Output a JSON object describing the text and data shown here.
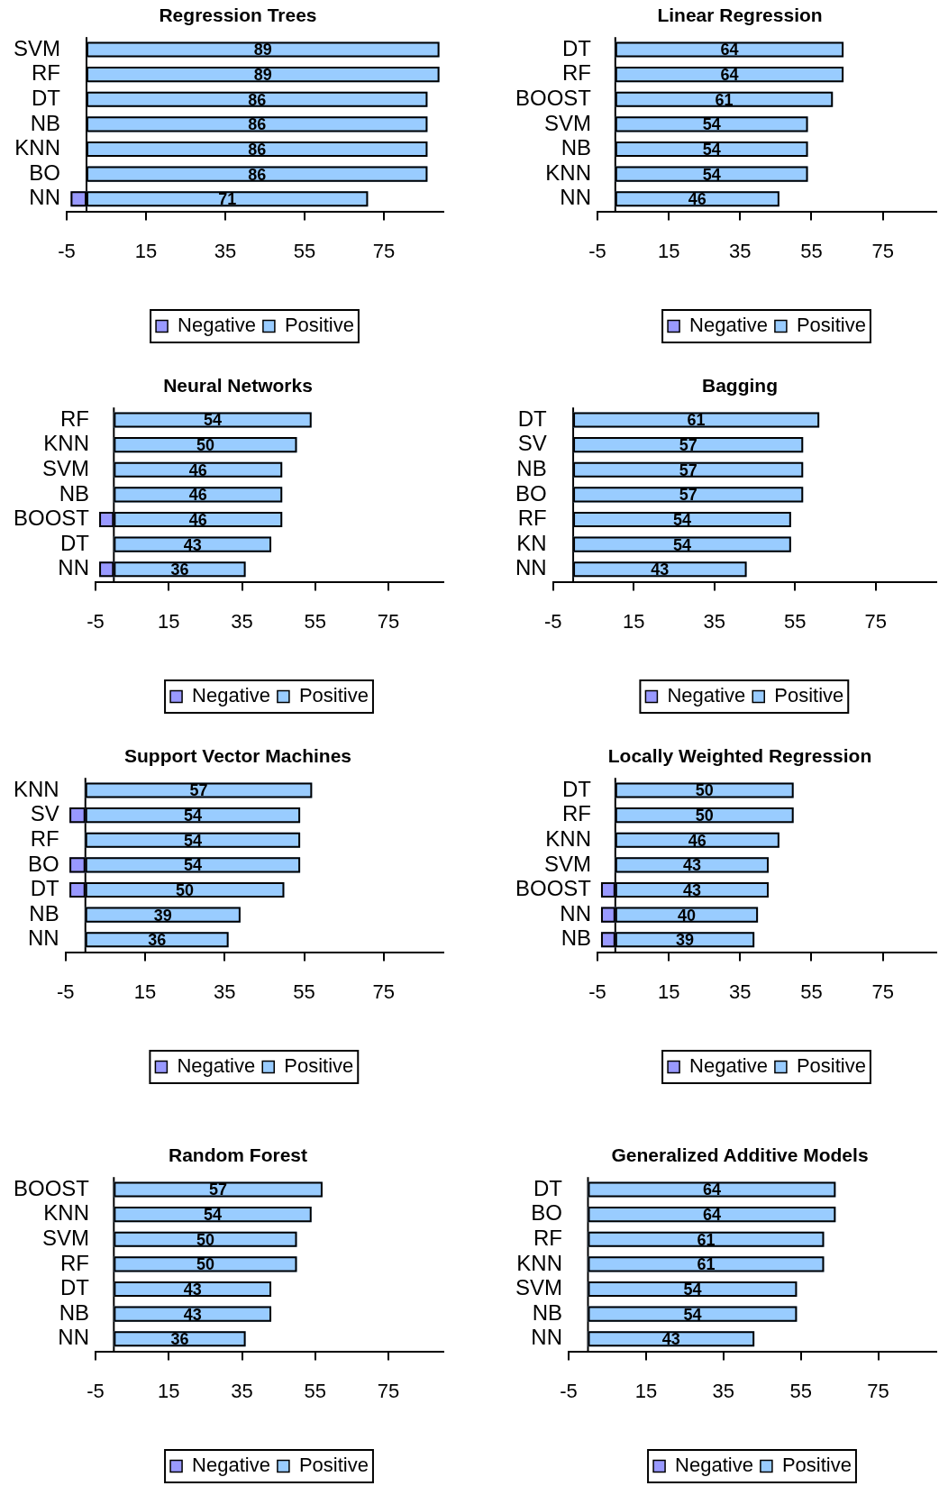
{
  "chart_data": [
    {
      "type": "bar",
      "title": "Regression Trees",
      "orientation": "horizontal",
      "stacked": true,
      "categories": [
        "SVM",
        "RF",
        "DT",
        "NB",
        "KNN",
        "BO",
        "NN"
      ],
      "series": [
        {
          "name": "Negative",
          "color": "#9999ff",
          "values": [
            null,
            null,
            null,
            null,
            null,
            null,
            -4
          ]
        },
        {
          "name": "Positive",
          "color": "#99ccff",
          "values": [
            89,
            89,
            86,
            86,
            86,
            86,
            71
          ],
          "value_labels": [
            "89",
            "89",
            "86",
            "86",
            "86",
            "86",
            "71"
          ]
        }
      ],
      "xlim": [
        -5,
        90
      ],
      "xticks": [
        -5,
        15,
        35,
        55,
        75
      ],
      "legend": "bottom"
    },
    {
      "type": "bar",
      "title": "Linear Regression",
      "orientation": "horizontal",
      "stacked": true,
      "categories": [
        "DT",
        "RF",
        "BOOST",
        "SVM",
        "NB",
        "KNN",
        "NN"
      ],
      "series": [
        {
          "name": "Negative",
          "color": "#9999ff",
          "values": [
            null,
            null,
            null,
            null,
            null,
            null,
            null
          ]
        },
        {
          "name": "Positive",
          "color": "#99ccff",
          "values": [
            64,
            64,
            61,
            54,
            54,
            54,
            46
          ],
          "value_labels": [
            "64",
            "64",
            "61",
            "54",
            "54",
            "54",
            "46"
          ]
        }
      ],
      "xlim": [
        -5,
        90
      ],
      "xticks": [
        -5,
        15,
        35,
        55,
        75
      ],
      "legend": "bottom"
    },
    {
      "type": "bar",
      "title": "Neural Networks",
      "orientation": "horizontal",
      "stacked": true,
      "categories": [
        "RF",
        "KNN",
        "SVM",
        "NB",
        "BOOST",
        "DT",
        "NN"
      ],
      "series": [
        {
          "name": "Negative",
          "color": "#9999ff",
          "values": [
            null,
            null,
            null,
            null,
            -4,
            null,
            -4
          ]
        },
        {
          "name": "Positive",
          "color": "#99ccff",
          "values": [
            54,
            50,
            46,
            46,
            46,
            43,
            36
          ],
          "value_labels": [
            "54",
            "50",
            "46",
            "46",
            "46",
            "43",
            "36"
          ]
        }
      ],
      "xlim": [
        -5,
        90
      ],
      "xticks": [
        -5,
        15,
        35,
        55,
        75
      ],
      "legend": "bottom"
    },
    {
      "type": "bar",
      "title": "Bagging",
      "orientation": "horizontal",
      "stacked": true,
      "categories": [
        "DT",
        "SV",
        "NB",
        "BO",
        "RF",
        "KN",
        "NN"
      ],
      "series": [
        {
          "name": "Negative",
          "color": "#9999ff",
          "values": [
            null,
            null,
            null,
            null,
            null,
            null,
            null
          ]
        },
        {
          "name": "Positive",
          "color": "#99ccff",
          "values": [
            61,
            57,
            57,
            57,
            54,
            54,
            43
          ],
          "value_labels": [
            "61",
            "57",
            "57",
            "57",
            "54",
            "54",
            "43"
          ]
        }
      ],
      "xlim": [
        -5,
        90
      ],
      "xticks": [
        -5,
        15,
        35,
        55,
        75
      ],
      "legend": "bottom"
    },
    {
      "type": "bar",
      "title": "Support Vector Machines",
      "orientation": "horizontal",
      "stacked": true,
      "categories": [
        "KNN",
        "SV",
        "RF",
        "BO",
        "DT",
        "NB",
        "NN"
      ],
      "series": [
        {
          "name": "Negative",
          "color": "#9999ff",
          "values": [
            null,
            -4,
            null,
            -4,
            -4,
            null,
            null
          ]
        },
        {
          "name": "Positive",
          "color": "#99ccff",
          "values": [
            57,
            54,
            54,
            54,
            50,
            39,
            36
          ],
          "value_labels": [
            "57",
            "54",
            "54",
            "54",
            "50",
            "39",
            "36"
          ]
        }
      ],
      "xlim": [
        -5,
        90
      ],
      "xticks": [
        -5,
        15,
        35,
        55,
        75
      ],
      "legend": "bottom"
    },
    {
      "type": "bar",
      "title": "Locally Weighted Regression",
      "orientation": "horizontal",
      "stacked": true,
      "categories": [
        "DT",
        "RF",
        "KNN",
        "SVM",
        "BOOST",
        "NN",
        "NB"
      ],
      "series": [
        {
          "name": "Negative",
          "color": "#9999ff",
          "values": [
            null,
            null,
            null,
            null,
            -4,
            -4,
            -4
          ]
        },
        {
          "name": "Positive",
          "color": "#99ccff",
          "values": [
            50,
            50,
            46,
            43,
            43,
            40,
            39
          ],
          "value_labels": [
            "50",
            "50",
            "46",
            "43",
            "43",
            "40",
            "39"
          ]
        }
      ],
      "xlim": [
        -5,
        90
      ],
      "xticks": [
        -5,
        15,
        35,
        55,
        75
      ],
      "legend": "bottom"
    },
    {
      "type": "bar",
      "title": "Random Forest",
      "orientation": "horizontal",
      "stacked": true,
      "categories": [
        "BOOST",
        "KNN",
        "SVM",
        "RF",
        "DT",
        "NB",
        "NN"
      ],
      "series": [
        {
          "name": "Negative",
          "color": "#9999ff",
          "values": [
            null,
            null,
            null,
            null,
            null,
            null,
            null
          ]
        },
        {
          "name": "Positive",
          "color": "#99ccff",
          "values": [
            57,
            54,
            50,
            50,
            43,
            43,
            36
          ],
          "value_labels": [
            "57",
            "54",
            "50",
            "50",
            "43",
            "43",
            "36"
          ]
        }
      ],
      "xlim": [
        -5,
        90
      ],
      "xticks": [
        -5,
        15,
        35,
        55,
        75
      ],
      "legend": "bottom"
    },
    {
      "type": "bar",
      "title": "Generalized Additive Models",
      "orientation": "horizontal",
      "stacked": true,
      "categories": [
        "DT",
        "BO",
        "RF",
        "KNN",
        "SVM",
        "NB",
        "NN"
      ],
      "series": [
        {
          "name": "Negative",
          "color": "#9999ff",
          "values": [
            null,
            null,
            null,
            null,
            null,
            null,
            null
          ]
        },
        {
          "name": "Positive",
          "color": "#99ccff",
          "values": [
            64,
            64,
            61,
            61,
            54,
            54,
            43
          ],
          "value_labels": [
            "64",
            "64",
            "61",
            "61",
            "54",
            "54",
            "43"
          ]
        }
      ],
      "xlim": [
        -5,
        90
      ],
      "xticks": [
        -5,
        15,
        35,
        55,
        75
      ],
      "legend": "bottom"
    }
  ]
}
